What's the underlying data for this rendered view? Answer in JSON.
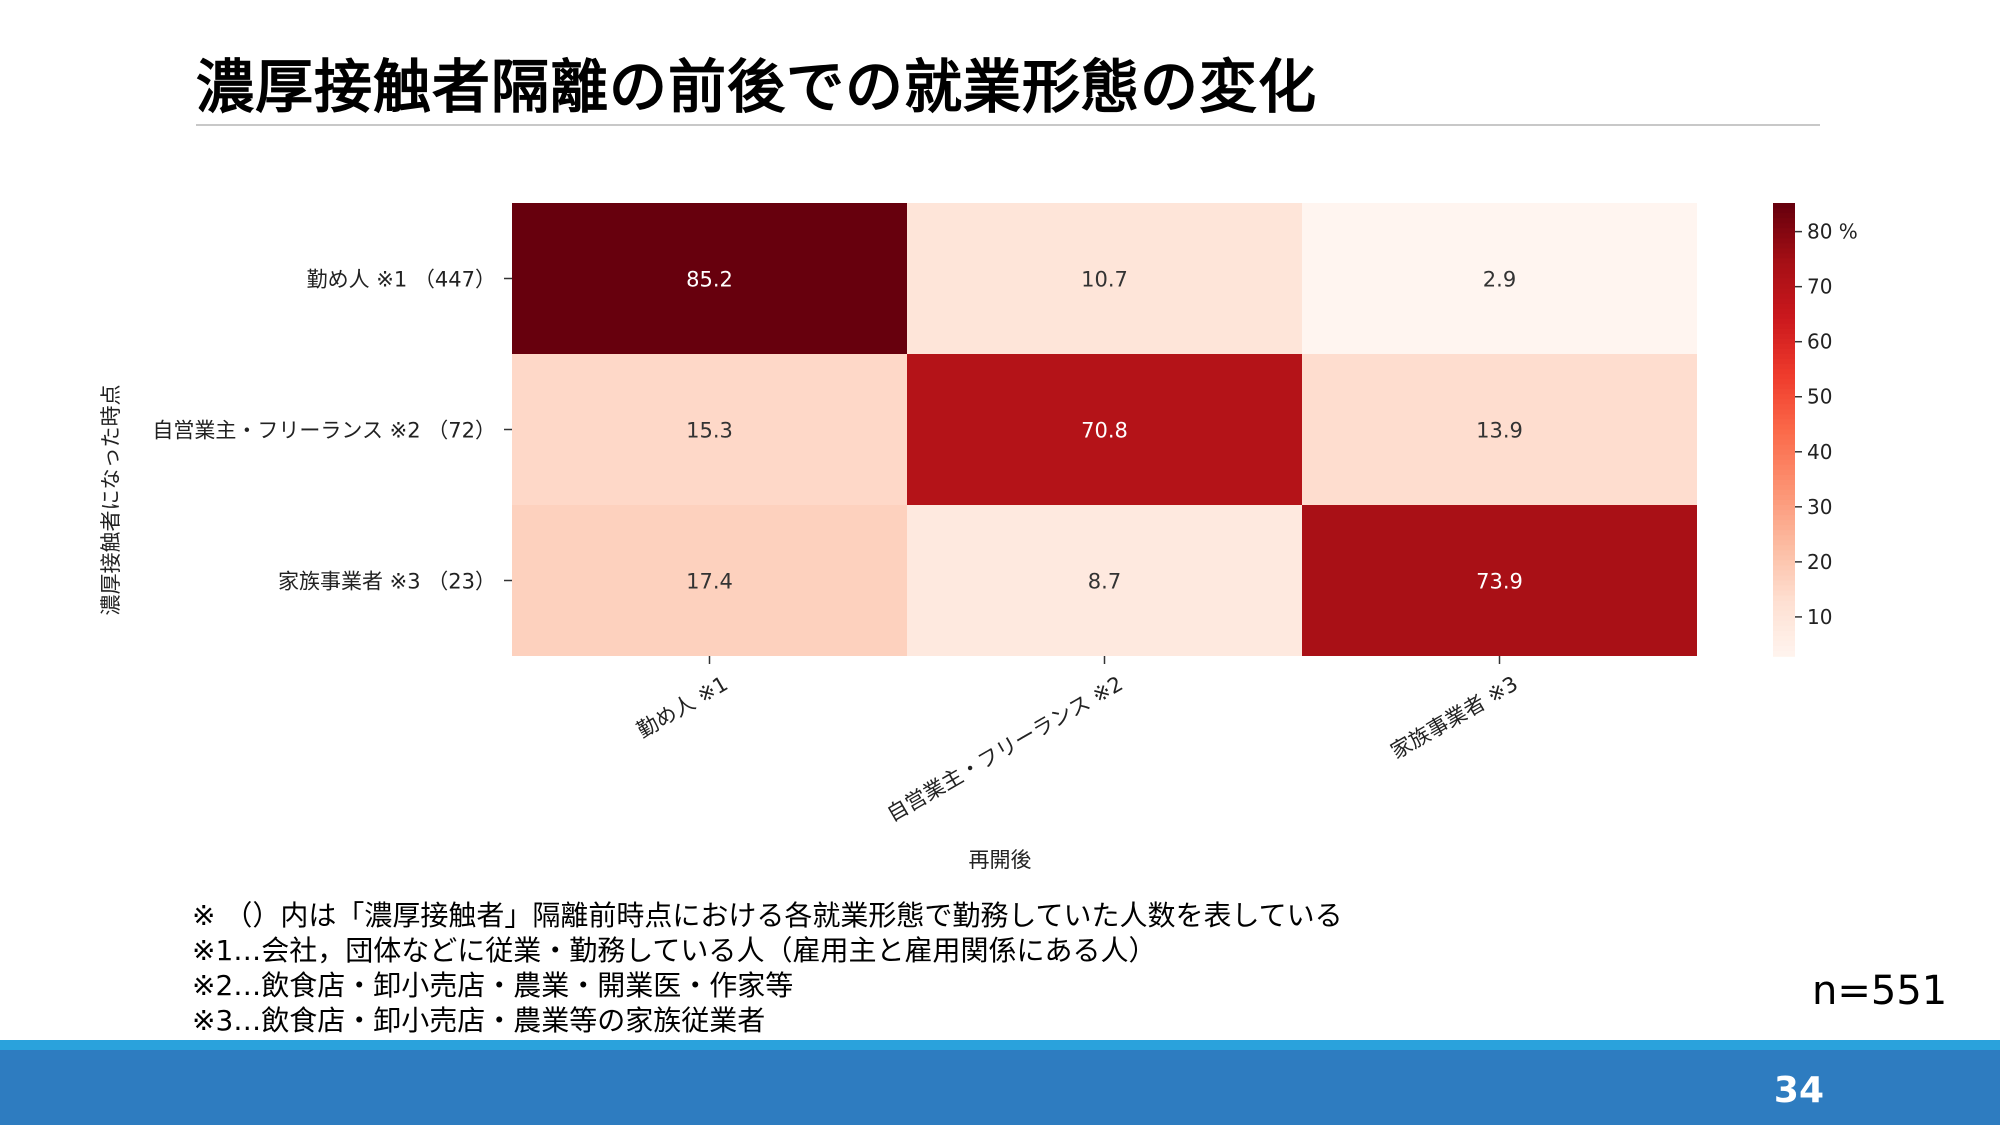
{
  "slide": {
    "title": "濃厚接触者隔離の前後での就業形態の変化",
    "n_label": "n=551",
    "page_number": "34",
    "notes": [
      "※ （）内は「濃厚接触者」隔離前時点における各就業形態で勤務していた人数を表している",
      "※1…会社，団体などに従業・勤務している人（雇用主と雇用関係にある人）",
      "※2…飲食店・卸小売店・農業・開業医・作家等",
      "※3…飲食店・卸小売店・農業等の家族従業者"
    ],
    "colors": {
      "footer_bar": "#2e7cc0",
      "footer_line": "#2aa2dc"
    }
  },
  "chart_data": {
    "type": "heatmap",
    "title": "",
    "ylabel": "濃厚接触者になった時点",
    "xlabel": "再開後",
    "rows": [
      "勤め人 ※1 （447）",
      "自営業主・フリーランス ※2 （72）",
      "家族事業者 ※3 （23）"
    ],
    "columns": [
      "勤め人 ※1",
      "自営業主・フリーランス ※2",
      "家族事業者 ※3"
    ],
    "values": [
      [
        85.2,
        10.7,
        2.9
      ],
      [
        15.3,
        70.8,
        13.9
      ],
      [
        17.4,
        8.7,
        73.9
      ]
    ],
    "value_labels": [
      [
        "85.2",
        "10.7",
        "2.9"
      ],
      [
        "15.3",
        "70.8",
        "13.9"
      ],
      [
        "17.4",
        "8.7",
        "73.9"
      ]
    ],
    "colorbar": {
      "range": [
        2.9,
        85.2
      ],
      "ticks": [
        10,
        20,
        30,
        40,
        50,
        60,
        70,
        80
      ],
      "tick_labels": [
        "10",
        "20",
        "30",
        "40",
        "50",
        "60",
        "70",
        "80 %"
      ],
      "colormap": "Reds"
    }
  }
}
